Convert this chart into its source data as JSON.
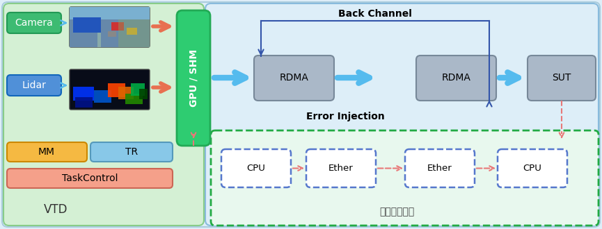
{
  "fig_width": 8.65,
  "fig_height": 3.3,
  "bg_outer": "#deeef8",
  "bg_vtd": "#d4f0d4",
  "bg_right": "#ddeef8",
  "vtd_label": "VTD",
  "gpu_shm_label": "GPU / SHM",
  "gpu_shm_color": "#2ecc71",
  "camera_label": "Camera",
  "lidar_label": "Lidar",
  "mm_label": "MM",
  "tr_label": "TR",
  "tc_label": "TaskControl",
  "camera_color": "#3dbb72",
  "lidar_color": "#5090d8",
  "mm_color": "#f5b942",
  "tr_color": "#88c8e8",
  "tc_color": "#f5a08a",
  "rdma1_label": "RDMA",
  "rdma2_label": "RDMA",
  "sut_label": "SUT",
  "box_gray": "#aab8c8",
  "cpu1_label": "CPU",
  "ether1_label": "Ether",
  "ether2_label": "Ether",
  "cpu2_label": "CPU",
  "back_channel_label": "Back Channel",
  "error_injection_label": "Error Injection",
  "traditional_label": "传统传输方案",
  "blue_arrow": "#55bbee",
  "pink_arrow": "#e87878",
  "dark_blue_arrow": "#3355aa",
  "orange_arrow": "#e87050"
}
